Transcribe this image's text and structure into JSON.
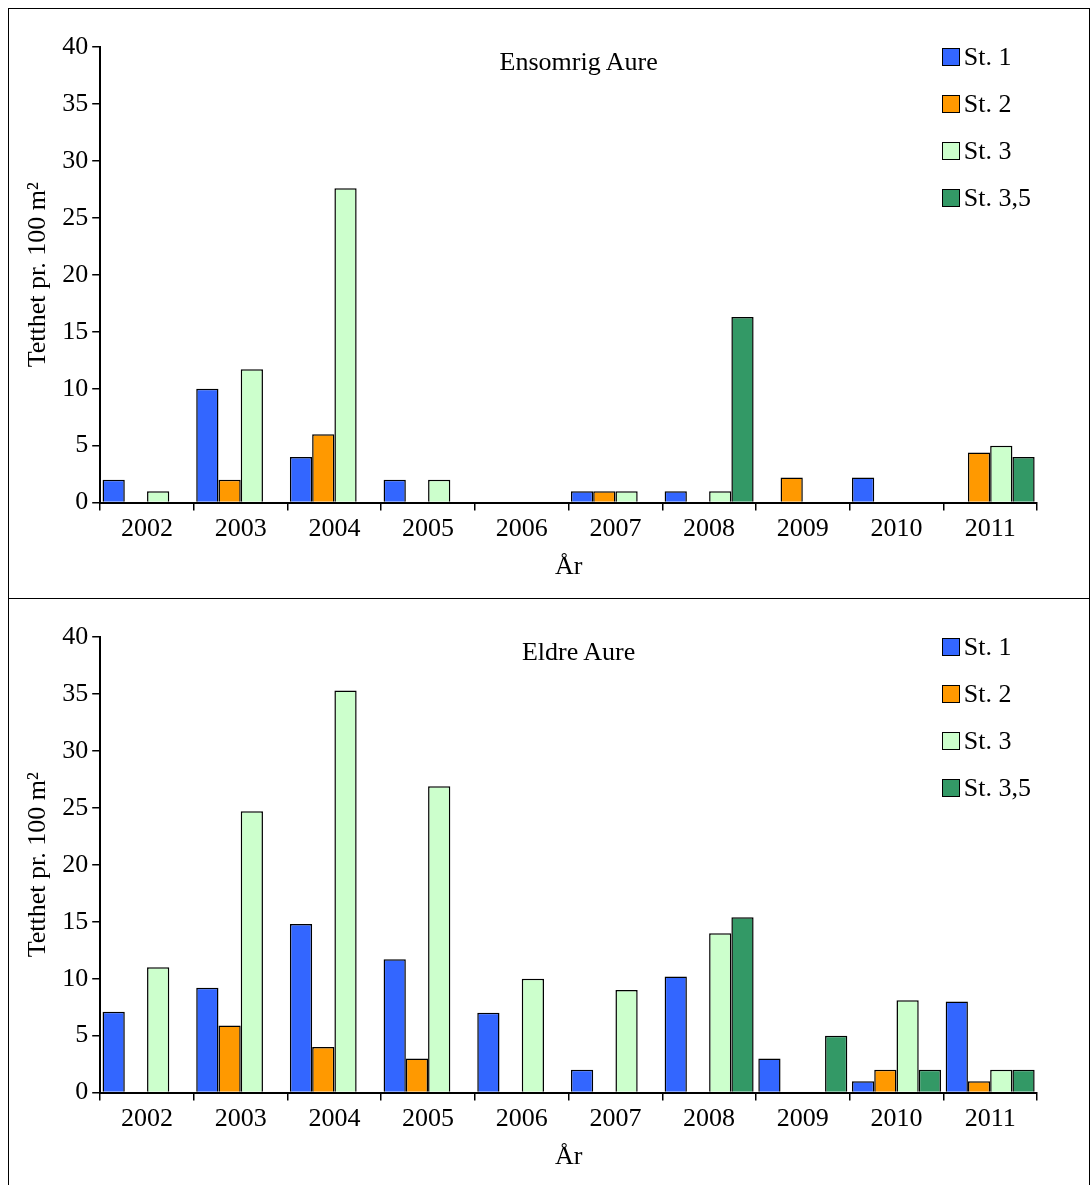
{
  "chart_data": [
    {
      "type": "bar",
      "title": "Ensomrig Aure",
      "xlabel": "År",
      "ylabel": "Tetthet pr. 100 m²",
      "categories": [
        "2002",
        "2003",
        "2004",
        "2005",
        "2006",
        "2007",
        "2008",
        "2009",
        "2010",
        "2011"
      ],
      "series": [
        {
          "name": "St. 1",
          "color": "#3366ff",
          "values": [
            2,
            10,
            4,
            2,
            null,
            1,
            1,
            null,
            2.2,
            null
          ]
        },
        {
          "name": "St. 2",
          "color": "#ff9900",
          "values": [
            null,
            2,
            6,
            null,
            null,
            1,
            null,
            2.2,
            null,
            4.4
          ]
        },
        {
          "name": "St. 3",
          "color": "#ccffcc",
          "values": [
            1,
            11.7,
            27.6,
            2,
            null,
            1,
            1,
            null,
            null,
            5
          ]
        },
        {
          "name": "St. 3,5",
          "color": "#339966",
          "values": [
            null,
            null,
            null,
            null,
            null,
            null,
            16.3,
            null,
            null,
            4
          ]
        }
      ],
      "ylim": [
        0,
        40
      ],
      "yticks": [
        0,
        5,
        10,
        15,
        20,
        25,
        30,
        35,
        40
      ],
      "grid": false,
      "legend": "top right"
    },
    {
      "type": "bar",
      "title": "Eldre Aure",
      "xlabel": "År",
      "ylabel": "Tetthet pr. 100 m²",
      "categories": [
        "2002",
        "2003",
        "2004",
        "2005",
        "2006",
        "2007",
        "2008",
        "2009",
        "2010",
        "2011"
      ],
      "series": [
        {
          "name": "St. 1",
          "color": "#3366ff",
          "values": [
            7.1,
            9.2,
            14.8,
            11.7,
            7,
            2,
            10.2,
            3,
            1,
            8
          ]
        },
        {
          "name": "St. 2",
          "color": "#ff9900",
          "values": [
            null,
            5.9,
            4,
            3,
            null,
            null,
            null,
            null,
            2,
            1
          ]
        },
        {
          "name": "St. 3",
          "color": "#ccffcc",
          "values": [
            11,
            24.7,
            35.3,
            26.9,
            10,
            9,
            14,
            null,
            8.1,
            2
          ]
        },
        {
          "name": "St. 3,5",
          "color": "#339966",
          "values": [
            null,
            null,
            null,
            null,
            null,
            null,
            15.4,
            5,
            2,
            2
          ]
        }
      ],
      "ylim": [
        0,
        40
      ],
      "yticks": [
        0,
        5,
        10,
        15,
        20,
        25,
        30,
        35,
        40
      ],
      "grid": false,
      "legend": "top right"
    }
  ]
}
